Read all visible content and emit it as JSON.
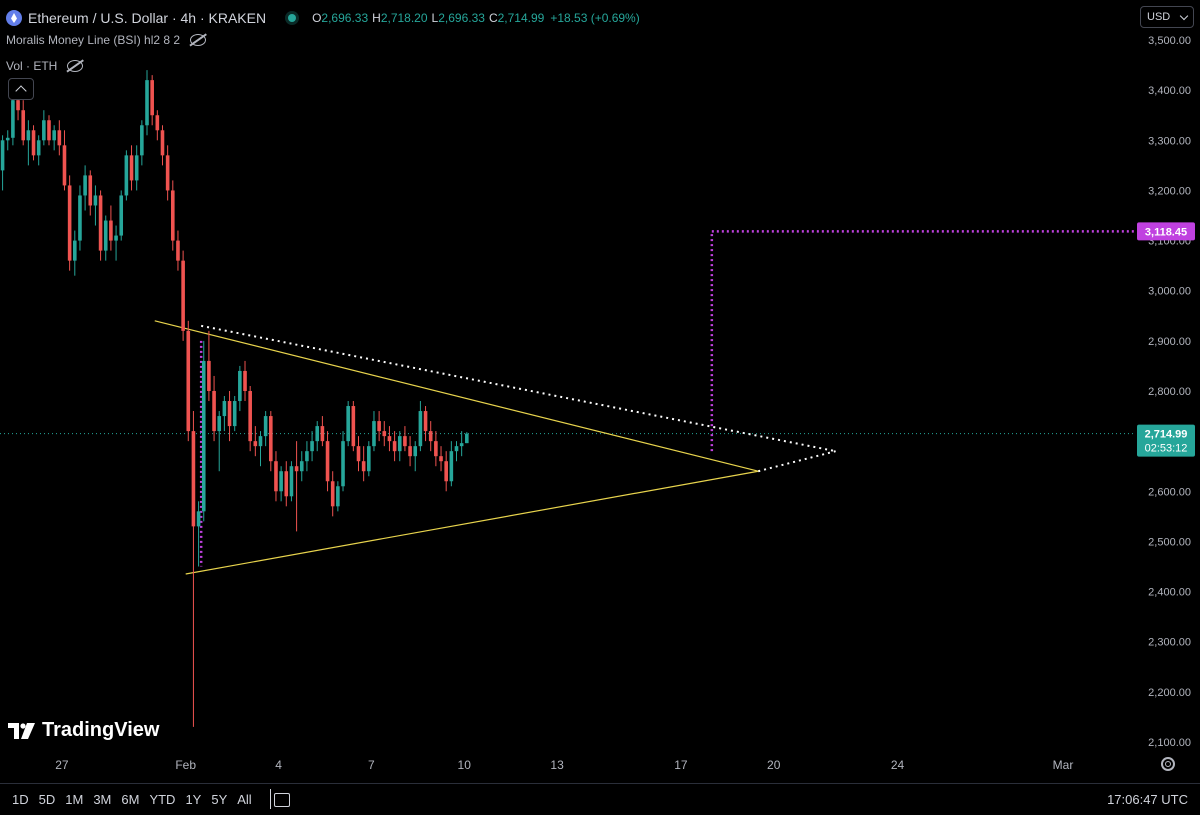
{
  "legend": {
    "title": "Ethereum / U.S. Dollar · 4h · KRAKEN",
    "ohlc": [
      {
        "k": "O",
        "v": "2,696.33"
      },
      {
        "k": "H",
        "v": "2,718.20"
      },
      {
        "k": "L",
        "v": "2,696.33"
      },
      {
        "k": "C",
        "v": "2,714.99"
      }
    ],
    "change": "+18.53 (+0.69%)",
    "indicator": "Moralis Money Line (BSI) hl2 8 2",
    "volume": "Vol · ETH"
  },
  "currency": "USD",
  "logo_text": "TradingView",
  "ranges": [
    "1D",
    "5D",
    "1M",
    "3M",
    "6M",
    "YTD",
    "1Y",
    "5Y",
    "All"
  ],
  "clock": "17:06:47 UTC",
  "icons": [
    "eth-icon",
    "eye-icon",
    "chevron-up-icon",
    "chevron-down-icon",
    "calendar-icon",
    "gear-icon"
  ],
  "colors": {
    "up": "#26a69a",
    "down": "#ef5350",
    "trendline": "#e8d44d",
    "target": "#c041e0",
    "projection": "#ffffff",
    "background": "#000000"
  },
  "chart_data": {
    "type": "candlestick",
    "y_range": [
      2080,
      3520
    ],
    "y_ticks": [
      2100,
      2200,
      2300,
      2400,
      2500,
      2600,
      2700,
      2800,
      2900,
      3000,
      3100,
      3200,
      3300,
      3400,
      3500
    ],
    "y_tick_labels": [
      "2,100.00",
      "2,200.00",
      "2,300.00",
      "2,400.00",
      "2,500.00",
      "2,600.00",
      "2,700.00",
      "2,800.00",
      "2,900.00",
      "3,000.00",
      "3,100.00",
      "3,200.00",
      "3,300.00",
      "3,400.00",
      "3,500.00"
    ],
    "x_range": [
      0,
      177
    ],
    "x_ticks": [
      {
        "t": 12,
        "label": "27"
      },
      {
        "t": 36,
        "label": "Feb"
      },
      {
        "t": 54,
        "label": "4"
      },
      {
        "t": 72,
        "label": "7"
      },
      {
        "t": 90,
        "label": "10"
      },
      {
        "t": 108,
        "label": "13"
      },
      {
        "t": 132,
        "label": "17"
      },
      {
        "t": 150,
        "label": "20"
      },
      {
        "t": 174,
        "label": "24"
      }
    ],
    "x_extra_tick": {
      "label": "Mar"
    },
    "last_price": {
      "value": 2714.99,
      "label": "2,714.99",
      "countdown": "02:53:12"
    },
    "target": {
      "value": 3118.45,
      "label": "3,118.45"
    },
    "candles": [
      [
        3240,
        3310,
        3200,
        3300
      ],
      [
        3300,
        3320,
        3280,
        3305
      ],
      [
        3305,
        3390,
        3290,
        3380
      ],
      [
        3380,
        3420,
        3340,
        3360
      ],
      [
        3360,
        3380,
        3290,
        3300
      ],
      [
        3300,
        3340,
        3250,
        3320
      ],
      [
        3320,
        3330,
        3260,
        3270
      ],
      [
        3270,
        3310,
        3250,
        3300
      ],
      [
        3300,
        3360,
        3290,
        3340
      ],
      [
        3340,
        3350,
        3290,
        3300
      ],
      [
        3300,
        3330,
        3280,
        3320
      ],
      [
        3320,
        3340,
        3270,
        3290
      ],
      [
        3290,
        3320,
        3200,
        3210
      ],
      [
        3210,
        3230,
        3040,
        3060
      ],
      [
        3060,
        3120,
        3030,
        3100
      ],
      [
        3100,
        3210,
        3080,
        3190
      ],
      [
        3190,
        3250,
        3160,
        3230
      ],
      [
        3230,
        3240,
        3150,
        3170
      ],
      [
        3170,
        3210,
        3130,
        3190
      ],
      [
        3190,
        3200,
        3060,
        3080
      ],
      [
        3080,
        3150,
        3060,
        3140
      ],
      [
        3140,
        3170,
        3080,
        3100
      ],
      [
        3100,
        3130,
        3060,
        3110
      ],
      [
        3110,
        3200,
        3100,
        3190
      ],
      [
        3190,
        3280,
        3180,
        3270
      ],
      [
        3270,
        3290,
        3200,
        3220
      ],
      [
        3220,
        3290,
        3200,
        3270
      ],
      [
        3270,
        3340,
        3250,
        3330
      ],
      [
        3330,
        3440,
        3310,
        3420
      ],
      [
        3420,
        3430,
        3330,
        3350
      ],
      [
        3350,
        3360,
        3300,
        3320
      ],
      [
        3320,
        3330,
        3250,
        3270
      ],
      [
        3270,
        3290,
        3180,
        3200
      ],
      [
        3200,
        3220,
        3080,
        3100
      ],
      [
        3100,
        3120,
        3040,
        3060
      ],
      [
        3060,
        3080,
        2900,
        2920
      ],
      [
        2920,
        2940,
        2700,
        2720
      ],
      [
        2720,
        2760,
        2130,
        2530
      ],
      [
        2530,
        2580,
        2450,
        2560
      ],
      [
        2560,
        2900,
        2540,
        2860
      ],
      [
        2860,
        2920,
        2780,
        2800
      ],
      [
        2800,
        2830,
        2700,
        2720
      ],
      [
        2720,
        2760,
        2640,
        2750
      ],
      [
        2750,
        2790,
        2720,
        2780
      ],
      [
        2780,
        2800,
        2700,
        2730
      ],
      [
        2730,
        2790,
        2720,
        2780
      ],
      [
        2780,
        2850,
        2760,
        2840
      ],
      [
        2840,
        2860,
        2780,
        2800
      ],
      [
        2800,
        2810,
        2680,
        2700
      ],
      [
        2700,
        2730,
        2670,
        2690
      ],
      [
        2690,
        2720,
        2650,
        2710
      ],
      [
        2710,
        2760,
        2690,
        2750
      ],
      [
        2750,
        2760,
        2640,
        2660
      ],
      [
        2660,
        2680,
        2580,
        2600
      ],
      [
        2600,
        2650,
        2580,
        2640
      ],
      [
        2640,
        2660,
        2570,
        2590
      ],
      [
        2590,
        2660,
        2580,
        2650
      ],
      [
        2650,
        2700,
        2520,
        2640
      ],
      [
        2640,
        2680,
        2620,
        2660
      ],
      [
        2660,
        2700,
        2640,
        2680
      ],
      [
        2680,
        2720,
        2660,
        2700
      ],
      [
        2700,
        2740,
        2680,
        2730
      ],
      [
        2730,
        2750,
        2690,
        2700
      ],
      [
        2700,
        2720,
        2600,
        2620
      ],
      [
        2620,
        2640,
        2550,
        2570
      ],
      [
        2570,
        2620,
        2560,
        2610
      ],
      [
        2610,
        2720,
        2600,
        2700
      ],
      [
        2700,
        2780,
        2690,
        2770
      ],
      [
        2770,
        2780,
        2680,
        2690
      ],
      [
        2690,
        2710,
        2640,
        2660
      ],
      [
        2660,
        2690,
        2620,
        2640
      ],
      [
        2640,
        2700,
        2630,
        2690
      ],
      [
        2690,
        2760,
        2680,
        2740
      ],
      [
        2740,
        2760,
        2700,
        2720
      ],
      [
        2720,
        2740,
        2690,
        2710
      ],
      [
        2710,
        2730,
        2680,
        2700
      ],
      [
        2700,
        2720,
        2660,
        2680
      ],
      [
        2680,
        2720,
        2660,
        2710
      ],
      [
        2710,
        2730,
        2680,
        2690
      ],
      [
        2690,
        2710,
        2650,
        2670
      ],
      [
        2670,
        2700,
        2640,
        2690
      ],
      [
        2690,
        2780,
        2680,
        2760
      ],
      [
        2760,
        2770,
        2700,
        2720
      ],
      [
        2720,
        2740,
        2680,
        2700
      ],
      [
        2700,
        2720,
        2650,
        2670
      ],
      [
        2670,
        2690,
        2640,
        2660
      ],
      [
        2660,
        2680,
        2600,
        2620
      ],
      [
        2620,
        2700,
        2610,
        2680
      ],
      [
        2680,
        2700,
        2660,
        2690
      ],
      [
        2690,
        2720,
        2670,
        2696
      ],
      [
        2696,
        2718,
        2696,
        2715
      ]
    ]
  }
}
